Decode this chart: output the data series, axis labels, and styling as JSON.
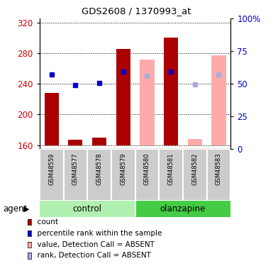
{
  "title": "GDS2608 / 1370993_at",
  "samples": [
    "GSM48559",
    "GSM48577",
    "GSM48578",
    "GSM48579",
    "GSM48580",
    "GSM48581",
    "GSM48582",
    "GSM48583"
  ],
  "bar_bottom": 160,
  "ylim_left": [
    155,
    325
  ],
  "ylim_right": [
    0,
    100
  ],
  "yticks_left": [
    160,
    200,
    240,
    280,
    320
  ],
  "yticks_right": [
    0,
    25,
    50,
    75,
    100
  ],
  "ytick_labels_right": [
    "0",
    "25",
    "50",
    "75",
    "100%"
  ],
  "red_bars": {
    "GSM48559": 228,
    "GSM48577": 167,
    "GSM48578": 170,
    "GSM48579": 285,
    "GSM48580": null,
    "GSM48581": 300,
    "GSM48582": null,
    "GSM48583": null
  },
  "pink_bars": {
    "GSM48559": null,
    "GSM48577": null,
    "GSM48578": null,
    "GSM48579": null,
    "GSM48580": 272,
    "GSM48581": null,
    "GSM48582": 168,
    "GSM48583": 277
  },
  "blue_dots": {
    "GSM48559": 252,
    "GSM48577": 238,
    "GSM48578": 241,
    "GSM48579": 256,
    "GSM48580": null,
    "GSM48581": 256,
    "GSM48582": null,
    "GSM48583": null
  },
  "light_blue_dots": {
    "GSM48559": null,
    "GSM48577": null,
    "GSM48578": null,
    "GSM48579": null,
    "GSM48580": 250,
    "GSM48581": null,
    "GSM48582": 239,
    "GSM48583": 252
  },
  "bar_width": 0.6,
  "red_color": "#aa0000",
  "pink_color": "#ffaaaa",
  "blue_color": "#0000cc",
  "light_blue_color": "#aaaadd",
  "legend_labels": [
    "count",
    "percentile rank within the sample",
    "value, Detection Call = ABSENT",
    "rank, Detection Call = ABSENT"
  ],
  "legend_colors": [
    "#aa0000",
    "#0000cc",
    "#ffaaaa",
    "#aaaadd"
  ],
  "ctrl_color": "#b2f0b2",
  "olan_color": "#44cc44",
  "gray_color": "#cccccc",
  "left_tick_color": "#cc0000",
  "right_tick_color": "#0000cc"
}
